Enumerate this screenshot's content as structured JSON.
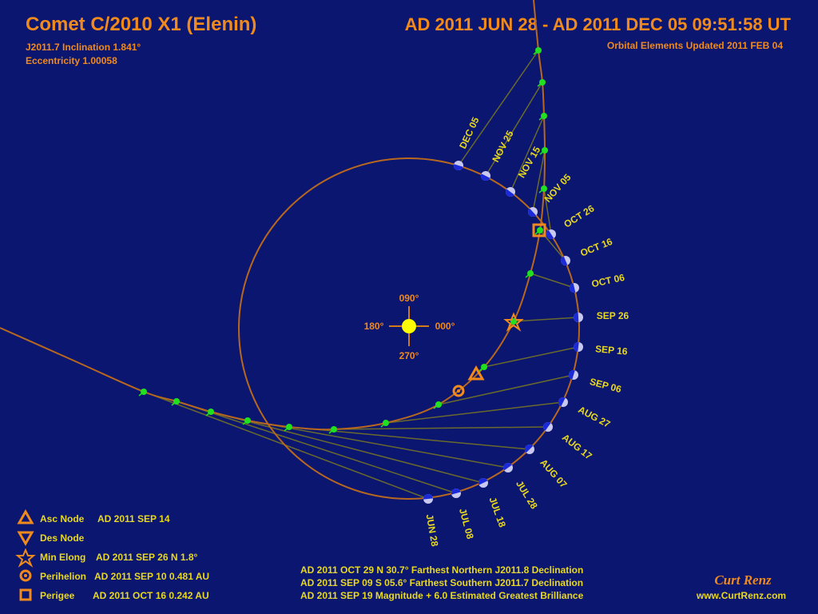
{
  "header": {
    "title": "Comet C/2010 X1 (Elenin)",
    "date_range": "AD 2011 JUN 28 - AD 2011 DEC 05  09:51:58 UT",
    "inclination": "J2011.7 Inclination  1.841°",
    "eccentricity": "Eccentricity  1.00058",
    "updated": "Orbital Elements Updated  2011 FEB 04"
  },
  "compass": {
    "north": "090°",
    "west": "180°",
    "east": "000°",
    "south": "270°"
  },
  "dates": [
    "JUN 28",
    "JUL 08",
    "JUL 18",
    "JUL 28",
    "AUG 07",
    "AUG 17",
    "AUG 27",
    "SEP 06",
    "SEP 16",
    "SEP 26",
    "OCT 06",
    "OCT 16",
    "OCT 26",
    "NOV 05",
    "NOV 15",
    "NOV 25",
    "DEC 05"
  ],
  "legend": [
    {
      "label": "Asc Node",
      "detail": "AD 2011 SEP 14"
    },
    {
      "label": "Des Node"
    },
    {
      "label": "Min Elong",
      "detail": "AD 2011 SEP 26  N 1.8°"
    },
    {
      "label": "Perihelion",
      "detail": "AD 2011 SEP 10  0.481 AU"
    },
    {
      "label": "Perigee",
      "detail": "AD 2011 OCT 16  0.242 AU"
    }
  ],
  "notes": [
    "AD 2011 OCT 29  N 30.7°  Farthest Northern J2011.8 Declination",
    "AD 2011 SEP 09  S 05.6°  Farthest Southern J2011.7 Declination",
    "AD 2011 SEP 19  Magnitude  + 6.0  Estimated Greatest Brilliance"
  ],
  "footer": {
    "author": "Curt Renz",
    "url": "www.CurtRenz.com"
  }
}
